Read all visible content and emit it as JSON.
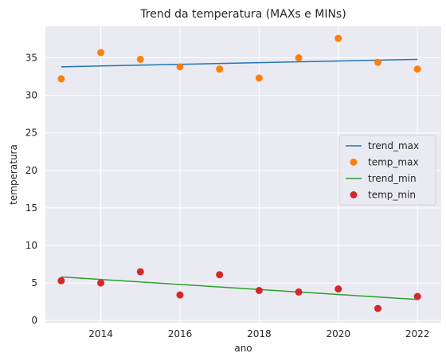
{
  "chart_data": {
    "type": "line",
    "title": "Trend da temperatura (MAXs e MINs)",
    "xlabel": "ano",
    "ylabel": "temperatura",
    "xlim": [
      2012.6,
      2022.6
    ],
    "ylim": [
      -0.3,
      39.2
    ],
    "xticks": [
      2014,
      2016,
      2018,
      2020,
      2022
    ],
    "yticks": [
      0,
      5,
      10,
      15,
      20,
      25,
      30,
      35
    ],
    "grid": true,
    "legend_position": "center-right",
    "x": [
      2013,
      2014,
      2015,
      2016,
      2017,
      2018,
      2019,
      2020,
      2021,
      2022
    ],
    "series": [
      {
        "name": "trend_max",
        "kind": "line",
        "color": "#1f77b4",
        "x": [
          2013,
          2022
        ],
        "values": [
          33.8,
          34.8
        ]
      },
      {
        "name": "temp_max",
        "kind": "scatter",
        "color": "#ff7f0e",
        "values": [
          32.2,
          35.7,
          34.8,
          33.8,
          33.5,
          32.3,
          35.0,
          37.6,
          34.4,
          33.5
        ]
      },
      {
        "name": "trend_min",
        "kind": "line",
        "color": "#2ca02c",
        "x": [
          2013,
          2022
        ],
        "values": [
          5.8,
          2.8
        ]
      },
      {
        "name": "temp_min",
        "kind": "scatter",
        "color": "#d62728",
        "values": [
          5.3,
          5.0,
          6.5,
          3.4,
          6.1,
          4.0,
          3.8,
          4.2,
          1.6,
          3.2
        ]
      }
    ]
  },
  "style": {
    "plot_background": "#eaeaf2",
    "grid_color": "#ffffff"
  }
}
